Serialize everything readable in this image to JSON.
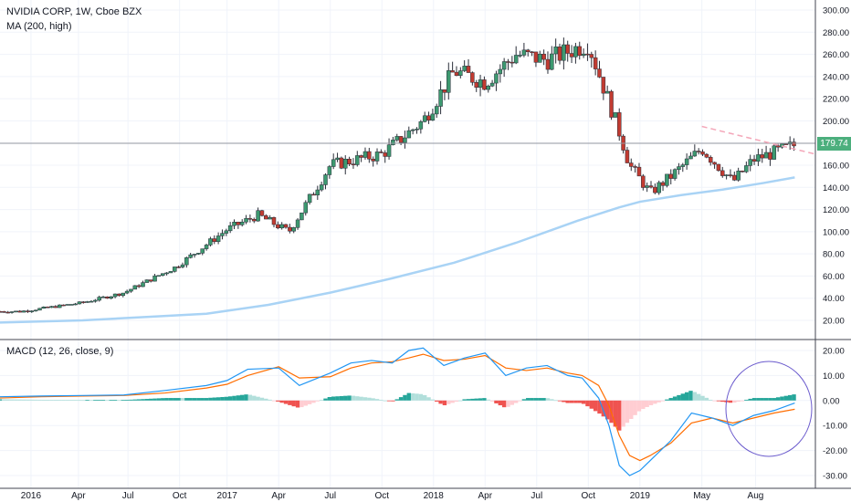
{
  "legend": {
    "title": "NVIDIA CORP, 1W, Cboe BZX",
    "ma": "MA (200, high)",
    "macd": "MACD (12, 26, close, 9)"
  },
  "colors": {
    "up": "#26a69a",
    "down": "#ef5350",
    "up_candle": "#3d9970",
    "down_candle": "#c23b31",
    "ma_line": "#a9d3f5",
    "macd_line": "#2196f3",
    "signal_line": "#ff6d00",
    "circle": "#6a5acd",
    "price_tag": "#4caf7d"
  },
  "chart_data": [
    {
      "type": "candlestick",
      "title": "NVIDIA CORP, 1W, Cboe BZX",
      "x_ticks": [
        "2016",
        "Apr",
        "Jul",
        "Oct",
        "2017",
        "Apr",
        "Jul",
        "Oct",
        "2018",
        "Apr",
        "Jul",
        "Oct",
        "2019",
        "May",
        "Aug"
      ],
      "y_ticks": [
        "300.00",
        "280.00",
        "260.00",
        "240.00",
        "220.00",
        "200.00",
        "180.00",
        "160.00",
        "140.00",
        "120.00",
        "100.00",
        "80.00",
        "60.00",
        "40.00",
        "20.00"
      ],
      "ylim": [
        10,
        300
      ],
      "last_price": "179.74",
      "price_anchors": {
        "x": [
          2016.0,
          2016.3,
          2016.5,
          2016.75,
          2017.0,
          2017.15,
          2017.3,
          2017.5,
          2017.75,
          2017.95,
          2018.1,
          2018.25,
          2018.4,
          2018.55,
          2018.75,
          2018.9,
          2018.95,
          2019.05,
          2019.15,
          2019.3,
          2019.45,
          2019.55,
          2019.75
        ],
        "y": [
          28,
          36,
          45,
          68,
          102,
          115,
          100,
          160,
          170,
          200,
          245,
          235,
          260,
          255,
          270,
          190,
          160,
          135,
          150,
          175,
          145,
          165,
          178
        ]
      },
      "series": [
        {
          "name": "MA (200, high)",
          "x": [
            2015.9,
            2016.3,
            2016.6,
            2016.9,
            2017.2,
            2017.5,
            2017.8,
            2018.1,
            2018.4,
            2018.7,
            2018.9,
            2019.0,
            2019.2,
            2019.4,
            2019.6,
            2019.75
          ],
          "values": [
            18,
            20,
            23,
            26,
            34,
            45,
            58,
            72,
            90,
            110,
            122,
            127,
            133,
            138,
            144,
            149
          ]
        }
      ]
    },
    {
      "type": "macd",
      "title": "MACD (12, 26, close, 9)",
      "y_ticks": [
        "20.00",
        "10.00",
        "0.00",
        "-10.00",
        "-20.00",
        "-30.00"
      ],
      "ylim": [
        -33,
        22
      ],
      "series": [
        {
          "name": "MACD line",
          "x": [
            2015.9,
            2016.1,
            2016.3,
            2016.5,
            2016.7,
            2016.9,
            2017.0,
            2017.1,
            2017.25,
            2017.35,
            2017.5,
            2017.6,
            2017.7,
            2017.8,
            2017.88,
            2017.95,
            2018.05,
            2018.15,
            2018.25,
            2018.35,
            2018.45,
            2018.55,
            2018.65,
            2018.72,
            2018.8,
            2018.85,
            2018.9,
            2018.95,
            2019.0,
            2019.05,
            2019.15,
            2019.25,
            2019.35,
            2019.45,
            2019.55,
            2019.65,
            2019.75
          ],
          "values": [
            1.5,
            1.8,
            2.0,
            2.2,
            4.0,
            6.0,
            8.0,
            12.5,
            13.0,
            6.0,
            11.0,
            15.0,
            16.0,
            15.0,
            20.0,
            21.0,
            14.0,
            17.0,
            19.0,
            10.0,
            13.0,
            14.0,
            10.0,
            9.0,
            1.0,
            -10.0,
            -26.0,
            -30.0,
            -28.0,
            -24.0,
            -16.0,
            -5.0,
            -7.0,
            -10.0,
            -6.0,
            -4.0,
            -1.0
          ]
        },
        {
          "name": "Signal line",
          "x": [
            2015.9,
            2016.1,
            2016.3,
            2016.5,
            2016.7,
            2016.9,
            2017.0,
            2017.1,
            2017.25,
            2017.35,
            2017.5,
            2017.6,
            2017.7,
            2017.8,
            2017.88,
            2017.95,
            2018.05,
            2018.15,
            2018.25,
            2018.35,
            2018.45,
            2018.55,
            2018.65,
            2018.72,
            2018.8,
            2018.85,
            2018.9,
            2018.95,
            2019.0,
            2019.05,
            2019.15,
            2019.25,
            2019.35,
            2019.45,
            2019.55,
            2019.65,
            2019.75
          ],
          "values": [
            1.0,
            1.5,
            1.8,
            2.0,
            3.0,
            5.0,
            6.5,
            10.0,
            13.5,
            9.0,
            9.5,
            13.0,
            15.0,
            15.5,
            17.0,
            18.5,
            16.0,
            16.5,
            18.0,
            13.0,
            12.0,
            13.0,
            11.0,
            10.0,
            6.0,
            -2.0,
            -14.0,
            -22.0,
            -24.0,
            -22.0,
            -17.0,
            -9.0,
            -7.0,
            -9.0,
            -7.0,
            -5.0,
            -3.5
          ]
        }
      ]
    }
  ]
}
